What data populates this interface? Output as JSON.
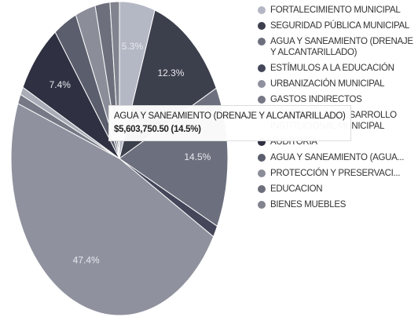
{
  "chart_data": {
    "type": "pie",
    "categories": [
      "FORTALECIMIENTO MUNICIPAL",
      "SEGURIDAD PÚBLICA MUNICIPAL",
      "AGUA Y SANEAMIENTO (DRENAJE Y ALCANTARILLADO)",
      "ESTÍMULOS A LA EDUCACIÓN",
      "URBANIZACIÓN MUNICIPAL",
      "GASTOS INDIRECTOS",
      "PROGRAMA DE DESARROLLO INSTITUCIONAL MUNICIPAL",
      "AUDITORÍA",
      "AGUA Y SANEAMIENTO (AGUA...",
      "PROTECCIÓN Y PRESERVACI...",
      "EDUCACION",
      "BIENES MUEBLES"
    ],
    "values": [
      5.3,
      12.3,
      14.5,
      1.2,
      47.4,
      1.0,
      0.8,
      7.4,
      3.5,
      3.0,
      2.2,
      1.4
    ],
    "value_labels": [
      "5.3%",
      "12.3%",
      "14.5%",
      null,
      "47.4%",
      null,
      null,
      "7.4%",
      null,
      null,
      null,
      null
    ],
    "colors": [
      "#b4b8c4",
      "#3c3f4c",
      "#6c707e",
      "#44475a",
      "#8f929e",
      "#767985",
      "#aaadb7",
      "#2f3142",
      "#5b5e6c",
      "#8b8e99",
      "#6d707c",
      "#81848f"
    ],
    "tooltip": {
      "category": "AGUA Y SANEAMIENTO (DRENAJE Y ALCANTARILLADO)",
      "value": 5603750.5,
      "label": "$5,603,750.50 (14.5%)"
    }
  }
}
